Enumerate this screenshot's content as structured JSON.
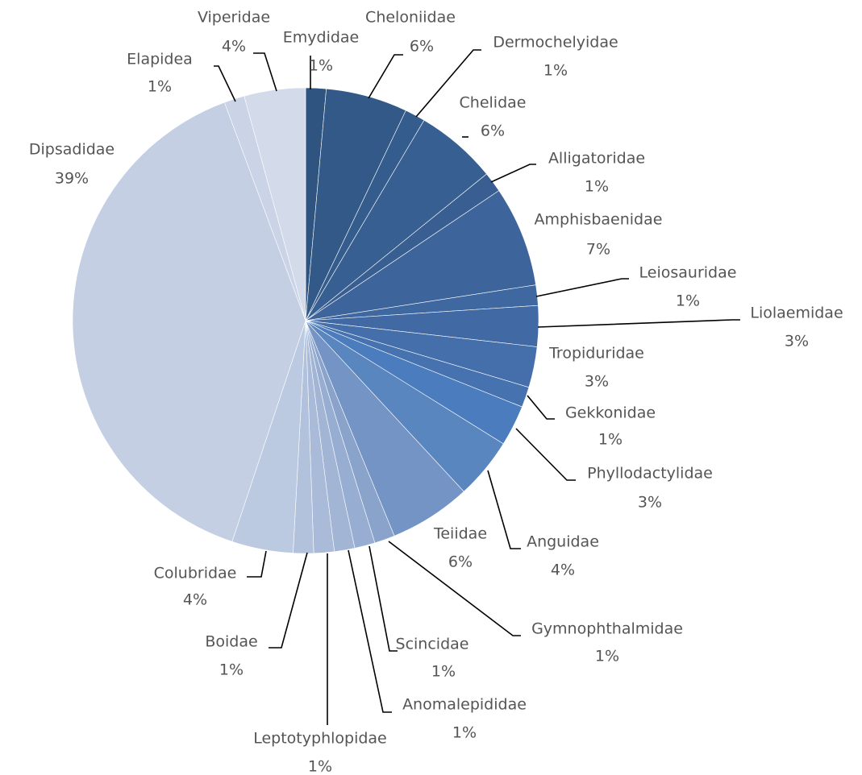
{
  "chart_data": {
    "type": "pie",
    "title": "",
    "start_angle_deg": 0,
    "direction": "clockwise",
    "slices": [
      {
        "label": "Emydidae",
        "pct_label": "1%",
        "value": 1.4,
        "color": "#2f5480"
      },
      {
        "label": "Cheloniidae",
        "pct_label": "6%",
        "value": 5.6,
        "color": "#325987"
      },
      {
        "label": "Dermochelyidae",
        "pct_label": "1%",
        "value": 1.4,
        "color": "#345d8e"
      },
      {
        "label": "Chelidae",
        "pct_label": "6%",
        "value": 5.6,
        "color": "#375f91"
      },
      {
        "label": "Alligatoridae",
        "pct_label": "1%",
        "value": 1.4,
        "color": "#395f92"
      },
      {
        "label": "Amphisbaenidae",
        "pct_label": "7%",
        "value": 6.9,
        "color": "#3d659c"
      },
      {
        "label": "Leiosauridae",
        "pct_label": "1%",
        "value": 1.4,
        "color": "#3f68a0"
      },
      {
        "label": "Liolaemidae",
        "pct_label": "3%",
        "value": 2.8,
        "color": "#4169a3"
      },
      {
        "label": "Tropiduridae",
        "pct_label": "3%",
        "value": 2.8,
        "color": "#446fab"
      },
      {
        "label": "Gekkonidae",
        "pct_label": "1%",
        "value": 1.4,
        "color": "#4772b0"
      },
      {
        "label": "Phyllodactylidae",
        "pct_label": "3%",
        "value": 2.8,
        "color": "#4a7cbe"
      },
      {
        "label": "Anguidae",
        "pct_label": "4%",
        "value": 4.2,
        "color": "#5a86c0"
      },
      {
        "label": "Teiidae",
        "pct_label": "6%",
        "value": 5.6,
        "color": "#7394c4"
      },
      {
        "label": "Gymnophthalmidae",
        "pct_label": "1%",
        "value": 1.4,
        "color": "#8aa3cb"
      },
      {
        "label": "Scincidae",
        "pct_label": "1%",
        "value": 1.4,
        "color": "#97aed2"
      },
      {
        "label": "Anomalepididae",
        "pct_label": "1%",
        "value": 1.4,
        "color": "#a2b5d5"
      },
      {
        "label": "Leptotyphlopidae",
        "pct_label": "1%",
        "value": 1.4,
        "color": "#a9bbd9"
      },
      {
        "label": "Boidae",
        "pct_label": "1%",
        "value": 1.4,
        "color": "#b2c2dd"
      },
      {
        "label": "Colubridae",
        "pct_label": "4%",
        "value": 4.2,
        "color": "#bccae1"
      },
      {
        "label": "Dipsadidae",
        "pct_label": "39%",
        "value": 38.8,
        "color": "#c4cfe3"
      },
      {
        "label": "Elapidea",
        "pct_label": "1%",
        "value": 1.4,
        "color": "#cad4e6"
      },
      {
        "label": "Viperidae",
        "pct_label": "4%",
        "value": 4.2,
        "color": "#d3dbea"
      }
    ],
    "legend": "none (data labels with leader lines)"
  }
}
